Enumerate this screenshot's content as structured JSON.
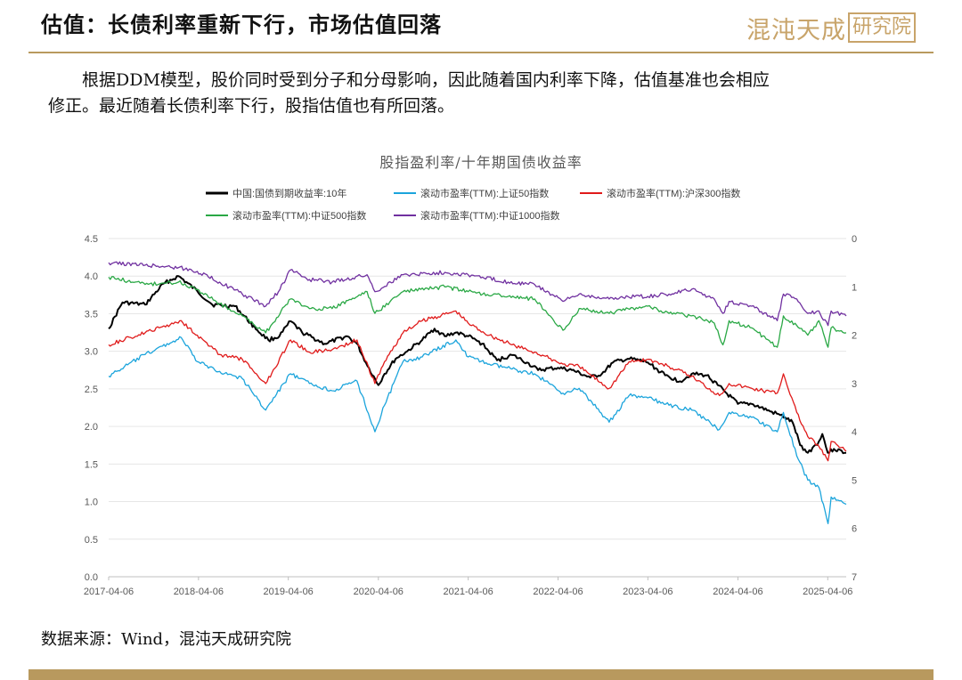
{
  "header": {
    "title": "估值：长债利率重新下行，市场估值回落",
    "logo_text": "混沌天成",
    "logo_seal": "研究院"
  },
  "body_text": {
    "line1": "根据DDM模型，股价同时受到分子和分母影响，因此随着国内利率下降，估值基准也会相应",
    "line2": "修正。最近随着长债利率下行，股指估值也有所回落。"
  },
  "source": "数据来源：Wind，混沌天成研究院",
  "colors": {
    "accent_gold": "#b8995e",
    "logo_gold": "#c8a46a"
  },
  "chart_data": {
    "type": "line",
    "title": "股指盈利率/十年期国债收益率",
    "x_ticks": [
      "2017-04-06",
      "2018-04-06",
      "2019-04-06",
      "2020-04-06",
      "2021-04-06",
      "2022-04-06",
      "2023-04-06",
      "2024-04-06",
      "2025-04-06"
    ],
    "x_range": [
      "2017-04-06",
      "2025-06-20"
    ],
    "left_axis": {
      "ticks": [
        "0.0",
        "0.5",
        "1.0",
        "1.5",
        "2.0",
        "2.5",
        "3.0",
        "3.5",
        "4.0",
        "4.5"
      ],
      "range": [
        0,
        4.5
      ]
    },
    "right_axis": {
      "ticks": [
        "0",
        "1",
        "2",
        "3",
        "4",
        "5",
        "6",
        "7"
      ],
      "range": [
        0,
        7
      ],
      "inverted": true
    },
    "grid": "horizontal",
    "legend_position": "top",
    "series": [
      {
        "name": "中国:国债到期收益率:10年",
        "color": "#000000",
        "axis": "left",
        "x": [
          "2017-04-06",
          "2017-06-01",
          "2017-09-01",
          "2017-11-15",
          "2018-01-15",
          "2018-04-01",
          "2018-06-01",
          "2018-09-01",
          "2018-12-01",
          "2019-01-15",
          "2019-03-01",
          "2019-04-15",
          "2019-06-01",
          "2019-09-01",
          "2019-12-01",
          "2020-01-10",
          "2020-02-15",
          "2020-04-06",
          "2020-05-01",
          "2020-06-15",
          "2020-08-01",
          "2020-10-01",
          "2020-11-20",
          "2021-01-01",
          "2021-02-15",
          "2021-04-06",
          "2021-06-01",
          "2021-08-01",
          "2021-10-01",
          "2021-12-01",
          "2022-01-15",
          "2022-04-06",
          "2022-06-01",
          "2022-08-15",
          "2022-10-01",
          "2022-11-15",
          "2023-01-15",
          "2023-03-01",
          "2023-04-06",
          "2023-06-15",
          "2023-08-15",
          "2023-10-01",
          "2023-12-01",
          "2024-01-15",
          "2024-04-06",
          "2024-06-01",
          "2024-08-15",
          "2024-09-25",
          "2024-10-15",
          "2024-11-15",
          "2024-12-15",
          "2025-01-15",
          "2025-03-01",
          "2025-03-15",
          "2025-04-06",
          "2025-05-01",
          "2025-06-20"
        ],
        "y": [
          3.3,
          3.65,
          3.62,
          3.9,
          4.0,
          3.8,
          3.62,
          3.6,
          3.28,
          3.15,
          3.2,
          3.4,
          3.25,
          3.1,
          3.2,
          3.1,
          2.85,
          2.55,
          2.7,
          2.9,
          3.0,
          3.15,
          3.3,
          3.2,
          3.25,
          3.2,
          3.1,
          2.88,
          2.95,
          2.85,
          2.75,
          2.78,
          2.75,
          2.65,
          2.7,
          2.85,
          2.9,
          2.88,
          2.85,
          2.68,
          2.6,
          2.7,
          2.68,
          2.55,
          2.3,
          2.3,
          2.2,
          2.15,
          2.12,
          2.05,
          1.75,
          1.65,
          1.8,
          1.9,
          1.65,
          1.7,
          1.65
        ]
      },
      {
        "name": "滚动市盈率(TTM):上证50指数",
        "color": "#1ba4dc",
        "axis": "right",
        "x": [
          "2017-04-06",
          "2017-09-01",
          "2018-01-26",
          "2018-04-01",
          "2018-07-01",
          "2018-10-01",
          "2019-01-04",
          "2019-04-15",
          "2019-07-01",
          "2019-10-01",
          "2020-01-10",
          "2020-03-23",
          "2020-05-01",
          "2020-07-15",
          "2020-10-01",
          "2021-02-15",
          "2021-04-06",
          "2021-07-01",
          "2021-10-01",
          "2022-01-01",
          "2022-04-26",
          "2022-07-01",
          "2022-10-31",
          "2023-01-20",
          "2023-04-06",
          "2023-07-01",
          "2023-10-01",
          "2024-01-22",
          "2024-03-01",
          "2024-06-01",
          "2024-09-13",
          "2024-10-08",
          "2024-12-01",
          "2025-01-15",
          "2025-03-01",
          "2025-04-07",
          "2025-04-20",
          "2025-06-20"
        ],
        "y": [
          2.85,
          2.4,
          2.05,
          2.55,
          2.75,
          2.9,
          3.55,
          2.8,
          3.0,
          3.15,
          2.95,
          4.0,
          3.45,
          2.55,
          2.45,
          2.1,
          2.45,
          2.6,
          2.7,
          2.8,
          3.2,
          3.1,
          3.8,
          3.25,
          3.3,
          3.45,
          3.55,
          3.95,
          3.6,
          3.7,
          4.0,
          3.6,
          4.5,
          5.0,
          5.15,
          5.9,
          5.35,
          5.5
        ]
      },
      {
        "name": "滚动市盈率(TTM):沪深300指数",
        "color": "#e01a1a",
        "axis": "right",
        "x": [
          "2017-04-06",
          "2017-09-01",
          "2018-01-26",
          "2018-04-01",
          "2018-07-01",
          "2018-10-01",
          "2019-01-04",
          "2019-04-15",
          "2019-07-01",
          "2019-10-01",
          "2020-01-10",
          "2020-03-23",
          "2020-05-01",
          "2020-07-15",
          "2020-10-01",
          "2021-02-15",
          "2021-04-06",
          "2021-07-01",
          "2021-10-01",
          "2022-01-01",
          "2022-04-26",
          "2022-07-01",
          "2022-10-31",
          "2023-01-20",
          "2023-04-06",
          "2023-07-01",
          "2023-10-01",
          "2024-01-22",
          "2024-03-01",
          "2024-06-01",
          "2024-09-13",
          "2024-10-08",
          "2024-12-01",
          "2025-01-15",
          "2025-03-01",
          "2025-04-07",
          "2025-04-20",
          "2025-06-20"
        ],
        "y": [
          2.2,
          1.95,
          1.7,
          2.0,
          2.4,
          2.5,
          3.0,
          2.1,
          2.35,
          2.3,
          2.1,
          3.0,
          2.55,
          1.95,
          1.7,
          1.5,
          1.75,
          2.0,
          2.2,
          2.35,
          2.6,
          2.65,
          3.1,
          2.55,
          2.5,
          2.65,
          2.85,
          3.25,
          3.0,
          3.1,
          3.2,
          2.8,
          3.6,
          4.1,
          4.3,
          4.6,
          4.2,
          4.4
        ]
      },
      {
        "name": "滚动市盈率(TTM):中证500指数",
        "color": "#2aa845",
        "axis": "right",
        "x": [
          "2017-04-06",
          "2017-09-01",
          "2018-01-15",
          "2018-04-01",
          "2018-07-01",
          "2018-10-01",
          "2019-01-04",
          "2019-04-15",
          "2019-07-01",
          "2019-10-01",
          "2020-02-20",
          "2020-03-23",
          "2020-07-15",
          "2021-01-01",
          "2021-04-06",
          "2021-09-15",
          "2022-01-01",
          "2022-04-26",
          "2022-07-01",
          "2022-10-31",
          "2023-01-15",
          "2023-04-06",
          "2023-07-01",
          "2023-10-01",
          "2024-01-01",
          "2024-02-05",
          "2024-03-01",
          "2024-06-01",
          "2024-09-13",
          "2024-10-08",
          "2024-12-01",
          "2025-01-15",
          "2025-03-01",
          "2025-04-07",
          "2025-04-20",
          "2025-06-20"
        ],
        "y": [
          0.8,
          0.95,
          0.9,
          1.05,
          1.35,
          1.6,
          1.95,
          1.25,
          1.45,
          1.45,
          1.1,
          1.55,
          1.1,
          1.0,
          1.1,
          1.2,
          1.25,
          1.9,
          1.45,
          1.55,
          1.45,
          1.4,
          1.55,
          1.6,
          1.75,
          2.2,
          1.7,
          1.85,
          2.25,
          1.6,
          1.8,
          2.0,
          1.7,
          2.25,
          1.85,
          1.95
        ]
      },
      {
        "name": "滚动市盈率(TTM):中证1000指数",
        "color": "#7030a0",
        "axis": "right",
        "x": [
          "2017-04-06",
          "2017-09-01",
          "2018-01-15",
          "2018-04-01",
          "2018-07-01",
          "2018-10-01",
          "2019-01-04",
          "2019-02-25",
          "2019-04-15",
          "2019-07-01",
          "2019-10-01",
          "2020-02-20",
          "2020-03-23",
          "2020-07-15",
          "2021-01-01",
          "2021-04-06",
          "2021-09-15",
          "2022-01-01",
          "2022-04-26",
          "2022-07-01",
          "2022-10-31",
          "2023-01-15",
          "2023-04-06",
          "2023-07-01",
          "2023-10-01",
          "2024-01-01",
          "2024-02-05",
          "2024-03-01",
          "2024-06-01",
          "2024-09-13",
          "2024-10-08",
          "2024-12-01",
          "2025-01-15",
          "2025-03-01",
          "2025-04-07",
          "2025-04-20",
          "2025-06-20"
        ],
        "y": [
          0.5,
          0.55,
          0.6,
          0.68,
          0.9,
          1.15,
          1.4,
          1.1,
          0.65,
          0.85,
          0.9,
          0.75,
          1.1,
          0.75,
          0.7,
          0.75,
          0.9,
          0.95,
          1.3,
          1.15,
          1.25,
          1.2,
          1.2,
          1.15,
          1.05,
          1.25,
          1.55,
          1.3,
          1.4,
          1.7,
          1.15,
          1.25,
          1.55,
          1.5,
          1.8,
          1.5,
          1.6
        ]
      }
    ]
  }
}
